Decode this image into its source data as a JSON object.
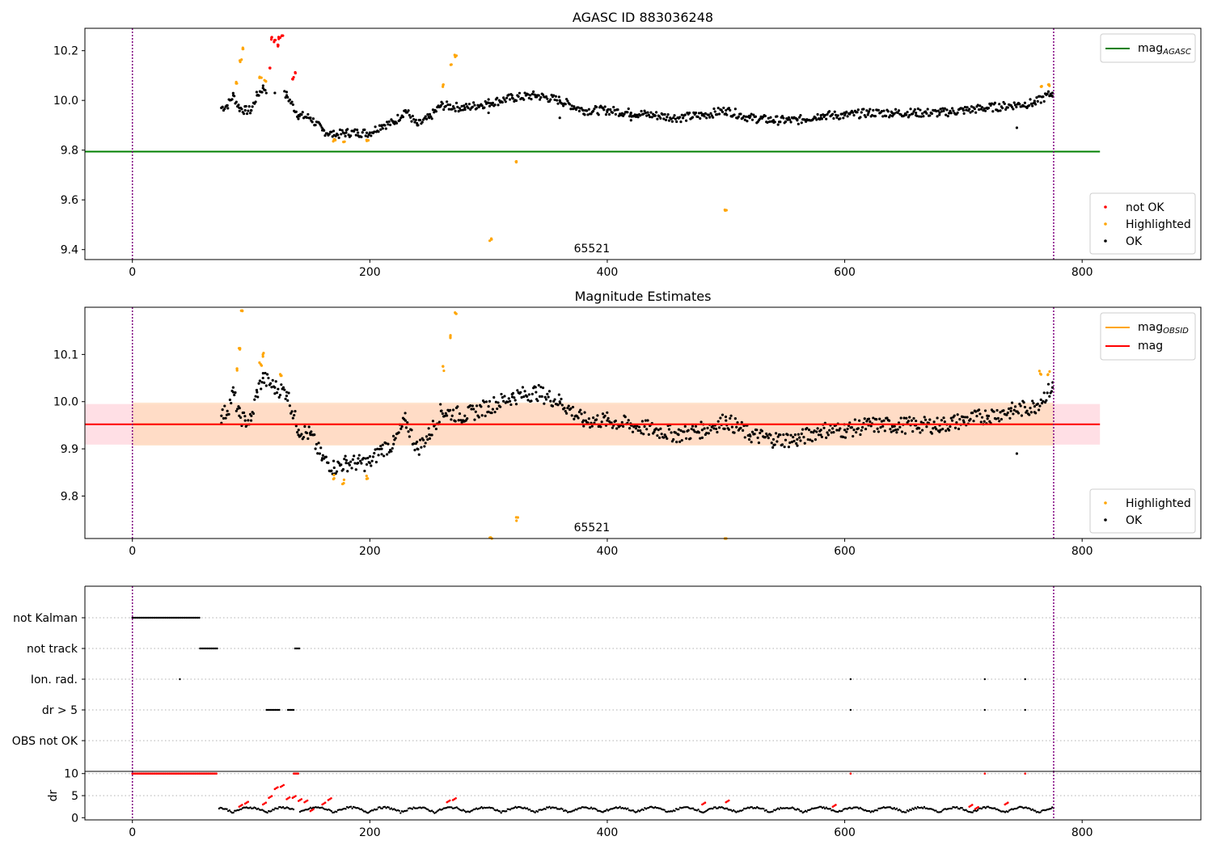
{
  "colors": {
    "ok": "#000000",
    "highlighted": "#ffa500",
    "not_ok": "#ff0000",
    "agasc_line": "#008000",
    "mag_line": "#ff0000",
    "mag_obsid_line": "#ffa500",
    "interval_marker": "#800080",
    "band_red": "#ffc0cb",
    "band_orange": "#ffdab9"
  },
  "chart_data": [
    {
      "type": "scatter",
      "title": "AGASC ID 883036248",
      "xlim": [
        -40,
        900
      ],
      "ylim": [
        9.36,
        10.29
      ],
      "x_ticks": [
        0,
        200,
        400,
        600,
        800
      ],
      "y_ticks": [
        9.4,
        9.6,
        9.8,
        10.0,
        10.2
      ],
      "y_tick_labels": [
        "9.4",
        "9.6",
        "9.8",
        "10.0",
        "10.2"
      ],
      "x_tick_labels": [
        "0",
        "200",
        "400",
        "600",
        "800"
      ],
      "obsid_label": "65521",
      "obsid_label_x": 387,
      "vlines": [
        0,
        776
      ],
      "hlines": [
        {
          "y": 9.794,
          "x": [
            -40,
            815
          ],
          "name": "agasc"
        }
      ],
      "legend_lines": [
        {
          "label": "mag",
          "sub": "AGASC"
        }
      ],
      "legend_points": [
        {
          "label": "not OK"
        },
        {
          "label": "Highlighted"
        },
        {
          "label": "OK"
        }
      ],
      "series": [
        {
          "name": "OK",
          "x": [
            75,
            80,
            85,
            90,
            95,
            100,
            105,
            110,
            120,
            130,
            140,
            150,
            160,
            170,
            180,
            190,
            200,
            210,
            220,
            230,
            240,
            250,
            260,
            280,
            300,
            320,
            340,
            360,
            380,
            400,
            420,
            440,
            460,
            480,
            500,
            520,
            540,
            560,
            580,
            600,
            620,
            640,
            660,
            680,
            700,
            720,
            740,
            760,
            775,
            745,
            300,
            360,
            420,
            580
          ],
          "y": [
            9.97,
            9.98,
            10.02,
            9.97,
            9.96,
            9.96,
            10.02,
            10.05,
            10.03,
            10.02,
            9.94,
            9.93,
            9.88,
            9.86,
            9.87,
            9.87,
            9.87,
            9.9,
            9.91,
            9.96,
            9.9,
            9.93,
            9.98,
            9.97,
            9.99,
            10.01,
            10.02,
            10.0,
            9.96,
            9.96,
            9.95,
            9.94,
            9.93,
            9.94,
            9.96,
            9.93,
            9.92,
            9.92,
            9.94,
            9.94,
            9.95,
            9.95,
            9.95,
            9.95,
            9.96,
            9.97,
            9.98,
            9.99,
            10.03,
            9.89,
            9.95,
            9.93,
            9.92,
            9.93
          ]
        },
        {
          "name": "Highlighted",
          "x": [
            88,
            91,
            93,
            108,
            112,
            170,
            178,
            198,
            262,
            268,
            272,
            302,
            324,
            500,
            765,
            772
          ],
          "y": [
            10.07,
            10.16,
            10.21,
            10.09,
            10.08,
            9.84,
            9.83,
            9.84,
            10.06,
            10.14,
            10.18,
            9.44,
            9.75,
            9.56,
            10.06,
            10.06
          ]
        },
        {
          "name": "not OK",
          "x": [
            115,
            118,
            120,
            122,
            124,
            126,
            135,
            138
          ],
          "y": [
            10.13,
            10.25,
            10.24,
            10.22,
            10.25,
            10.26,
            10.09,
            10.11
          ]
        }
      ]
    },
    {
      "type": "scatter",
      "title": "Magnitude Estimates",
      "xlim": [
        -40,
        900
      ],
      "ylim": [
        9.71,
        10.2
      ],
      "x_ticks": [
        0,
        200,
        400,
        600,
        800
      ],
      "x_tick_labels": [
        "0",
        "200",
        "400",
        "600",
        "800"
      ],
      "y_ticks": [
        9.8,
        9.9,
        10.0,
        10.1
      ],
      "y_tick_labels": [
        "9.8",
        "9.9",
        "10.0",
        "10.1"
      ],
      "obsid_label": "65521",
      "obsid_label_x": 387,
      "vlines": [
        0,
        776
      ],
      "mag": 9.952,
      "mag_band": [
        9.909,
        9.995
      ],
      "mag_obsid": 9.952,
      "mag_obsid_band": [
        9.907,
        9.998
      ],
      "legend_lines": [
        {
          "label": "mag",
          "sub": "OBSID"
        },
        {
          "label": "mag",
          "sub": ""
        }
      ],
      "legend_points": [
        {
          "label": "Highlighted"
        },
        {
          "label": "OK"
        }
      ],
      "series": [
        {
          "name": "OK",
          "x": [
            75,
            80,
            85,
            90,
            95,
            100,
            105,
            110,
            120,
            130,
            140,
            150,
            160,
            170,
            180,
            190,
            200,
            210,
            220,
            230,
            240,
            250,
            260,
            280,
            300,
            320,
            340,
            360,
            380,
            400,
            420,
            440,
            460,
            480,
            500,
            520,
            540,
            560,
            580,
            600,
            620,
            640,
            660,
            680,
            700,
            720,
            740,
            760,
            775,
            745
          ],
          "y": [
            9.97,
            9.98,
            10.02,
            9.97,
            9.96,
            9.96,
            10.02,
            10.05,
            10.03,
            10.02,
            9.94,
            9.93,
            9.88,
            9.86,
            9.87,
            9.87,
            9.87,
            9.9,
            9.91,
            9.96,
            9.9,
            9.93,
            9.98,
            9.97,
            9.99,
            10.01,
            10.02,
            10.0,
            9.96,
            9.96,
            9.95,
            9.94,
            9.93,
            9.94,
            9.96,
            9.93,
            9.92,
            9.92,
            9.94,
            9.94,
            9.95,
            9.95,
            9.95,
            9.95,
            9.96,
            9.97,
            9.98,
            9.99,
            10.03,
            9.89
          ]
        },
        {
          "name": "Highlighted",
          "x": [
            88,
            90,
            92,
            108,
            110,
            125,
            170,
            178,
            198,
            262,
            268,
            272,
            302,
            324,
            500,
            765,
            772
          ],
          "y": [
            10.07,
            10.11,
            10.19,
            10.08,
            10.1,
            10.06,
            9.84,
            9.83,
            9.84,
            10.07,
            10.14,
            10.19,
            9.71,
            9.75,
            9.71,
            10.06,
            10.06
          ]
        }
      ]
    },
    {
      "type": "scatter",
      "title": "",
      "xlim": [
        -40,
        900
      ],
      "categories": [
        "not Kalman",
        "not track",
        "Ion. rad.",
        "dr > 5",
        "OBS not OK"
      ],
      "flag_segments": [
        {
          "row": "not Kalman",
          "x": [
            0,
            57
          ]
        },
        {
          "row": "not track",
          "x": [
            57,
            72
          ]
        },
        {
          "row": "not track",
          "x": [
            137,
            141
          ]
        },
        {
          "row": "dr > 5",
          "x": [
            113,
            125
          ]
        },
        {
          "row": "dr > 5",
          "x": [
            131,
            136
          ]
        }
      ],
      "flag_points": [
        {
          "row": "Ion. rad.",
          "x": 40
        },
        {
          "row": "Ion. rad.",
          "x": 605
        },
        {
          "row": "Ion. rad.",
          "x": 718
        },
        {
          "row": "Ion. rad.",
          "x": 752
        },
        {
          "row": "dr > 5",
          "x": 605
        },
        {
          "row": "dr > 5",
          "x": 718
        },
        {
          "row": "dr > 5",
          "x": 752
        }
      ],
      "vlines": [
        0,
        776
      ]
    },
    {
      "type": "scatter",
      "title": "",
      "ylabel": "dr",
      "xlim": [
        -40,
        900
      ],
      "ylim": [
        -0.5,
        10.5
      ],
      "x_ticks": [
        0,
        200,
        400,
        600,
        800
      ],
      "x_tick_labels": [
        "0",
        "200",
        "400",
        "600",
        "800"
      ],
      "y_ticks": [
        0,
        5,
        10
      ],
      "y_tick_labels": [
        "0",
        "5",
        "10"
      ],
      "vlines": [
        0,
        776
      ],
      "red_ranges": [
        [
          0,
          72
        ],
        [
          136,
          140
        ],
        [
          605,
          606
        ],
        [
          718,
          719
        ],
        [
          752,
          753
        ]
      ],
      "red_x": [
        90,
        95,
        110,
        115,
        120,
        125,
        130,
        135,
        140,
        145,
        150,
        160,
        165,
        265,
        270,
        480,
        500,
        590,
        705,
        710,
        735
      ],
      "red_y": [
        2.5,
        3.2,
        3.0,
        4.5,
        6.5,
        7.0,
        4.2,
        4.5,
        3.8,
        3.5,
        1.5,
        3.0,
        4.0,
        3.5,
        4.0,
        3.0,
        3.5,
        2.5,
        2.5,
        2.0,
        3.0
      ]
    }
  ]
}
